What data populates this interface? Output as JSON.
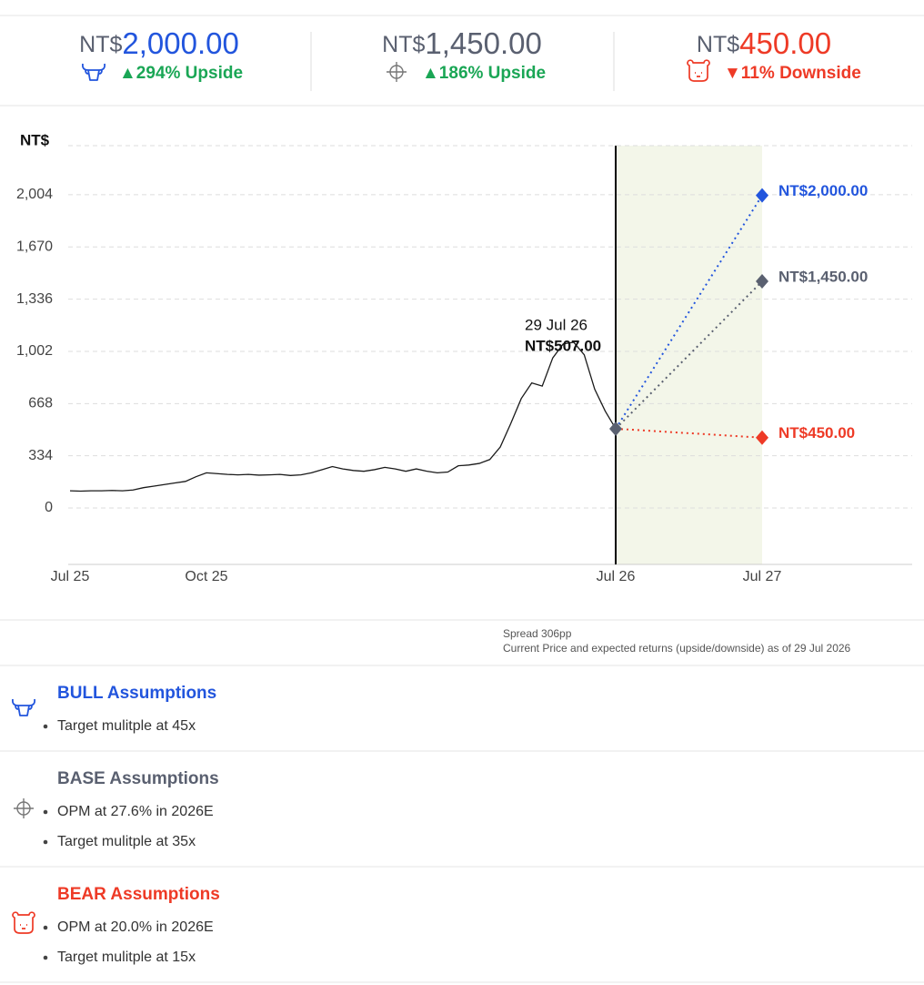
{
  "header": {
    "targets": [
      {
        "currency": "NT$",
        "price": "2,000.00",
        "color": "#2255dd",
        "change": "▲294% Upside",
        "change_color": "#1aa655"
      },
      {
        "currency": "NT$",
        "price": "1,450.00",
        "color": "#5a6070",
        "change": "▲186% Upside",
        "change_color": "#1aa655"
      },
      {
        "currency": "NT$",
        "price": "450.00",
        "color": "#ee3a26",
        "change": "▼11% Downside",
        "change_color": "#ee3a26"
      }
    ]
  },
  "chart_data": {
    "type": "line",
    "y_label": "NT$",
    "ylim": [
      -361,
      2318
    ],
    "yticks": [
      0,
      334,
      668,
      {
        "value": 1002,
        "label": "1,002"
      },
      {
        "value": 1336,
        "label": "1,336"
      },
      {
        "value": 1670,
        "label": "1,670"
      },
      {
        "value": 2004,
        "label": "2,004"
      }
    ],
    "xlim": [
      0,
      157
    ],
    "xticks": [
      {
        "value": 0,
        "label": "Jul 25"
      },
      {
        "value": 13,
        "label": "Oct 25"
      },
      {
        "value": 52,
        "label": "Jul 26"
      },
      {
        "value": 104,
        "label": "Jul 27"
      }
    ],
    "grid": true,
    "series": [
      {
        "color": "#1a1a1a",
        "x": [
          0,
          1,
          2,
          3,
          4,
          5,
          6,
          7,
          8,
          9,
          10,
          11,
          12,
          13,
          14,
          15,
          16,
          17,
          18,
          19,
          20,
          21,
          22,
          23,
          24,
          25,
          26,
          27,
          28,
          29,
          30,
          31,
          32,
          33,
          34,
          35,
          36,
          37,
          38,
          39,
          40,
          41,
          42,
          43,
          44,
          45,
          46,
          47,
          48,
          49,
          50,
          51,
          52
        ],
        "values": [
          110,
          108,
          110,
          110,
          112,
          110,
          115,
          130,
          140,
          150,
          160,
          170,
          200,
          225,
          220,
          215,
          212,
          215,
          210,
          212,
          215,
          208,
          212,
          225,
          245,
          265,
          250,
          240,
          235,
          245,
          260,
          250,
          235,
          250,
          235,
          225,
          230,
          270,
          275,
          285,
          310,
          390,
          540,
          700,
          800,
          780,
          960,
          1050,
          1060,
          980,
          760,
          620,
          507
        ]
      }
    ],
    "current": {
      "x": 52,
      "value": 507,
      "value_label": "NT$507.00",
      "date": "29 Jul 26",
      "color": "#5a6070"
    },
    "projections": [
      {
        "x": 104,
        "value": 2000,
        "label": "NT$2,000.00",
        "color": "#2255dd"
      },
      {
        "x": 104,
        "value": 1450,
        "label": "NT$1,450.00",
        "color": "#5a6070"
      },
      {
        "x": 104,
        "value": 450,
        "label": "NT$450.00",
        "color": "#ee3a26"
      }
    ],
    "projection_shade": "#f3f6e9"
  },
  "notes": {
    "spread": "Spread 306pp",
    "as_of": "Current Price and expected returns (upside/downside) as of  29 Jul 2026"
  },
  "assumptions": [
    {
      "title": "BULL Assumptions",
      "color": "#2255dd",
      "items": [
        "Target mulitple at 45x"
      ]
    },
    {
      "title": "BASE Assumptions",
      "color": "#5a6070",
      "items": [
        "OPM at 27.6% in 2026E",
        "Target mulitple at 35x"
      ]
    },
    {
      "title": "BEAR Assumptions",
      "color": "#ee3a26",
      "items": [
        "OPM at 20.0% in 2026E",
        "Target mulitple at 15x"
      ]
    }
  ]
}
